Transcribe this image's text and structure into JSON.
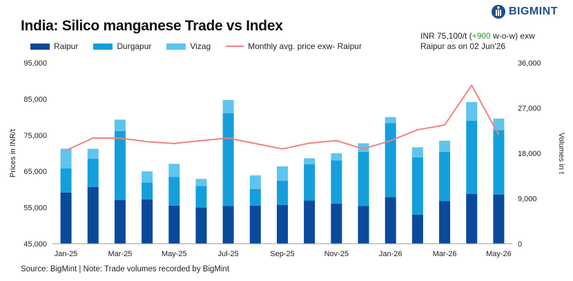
{
  "header": {
    "title": "India: Silico manganese Trade vs Index",
    "brand": "BIGMINT"
  },
  "note": {
    "line1_prefix": "INR 75,100/t (",
    "change": "+900",
    "line1_suffix": " w-o-w) exw",
    "line2": "Raipur as on 02 Jun'26"
  },
  "footer": {
    "source": "Source: BigMint | Note: Trade volumes recorded by BigMint"
  },
  "colors": {
    "raipur": "#0a4a9b",
    "durgapur": "#149fdc",
    "vizag": "#5fc4ee",
    "price_line": "#f08080"
  },
  "chart_data": {
    "type": "bar",
    "stacked": true,
    "categories": [
      "Jan-25",
      "Feb-25",
      "Mar-25",
      "Apr-25",
      "May-25",
      "Jun-25",
      "Jul-25",
      "Aug-25",
      "Sep-25",
      "Oct-25",
      "Nov-25",
      "Dec-25",
      "Jan-26",
      "Feb-26",
      "Mar-26",
      "Apr-26",
      "May-26"
    ],
    "x_tick_labels": [
      "Jan-25",
      "",
      "Mar-25",
      "",
      "May-25",
      "",
      "Jul-25",
      "",
      "Sep-25",
      "",
      "Nov-25",
      "",
      "Jan-26",
      "",
      "Mar-26",
      "",
      "May-26"
    ],
    "series": [
      {
        "name": "Raipur",
        "axis": "right",
        "values": [
          10200,
          11300,
          8700,
          8800,
          7600,
          7200,
          7500,
          7600,
          7700,
          8600,
          8000,
          7500,
          9300,
          5800,
          8500,
          9900,
          9800
        ]
      },
      {
        "name": "Durgapur",
        "axis": "right",
        "values": [
          4800,
          5600,
          13700,
          3400,
          5700,
          4300,
          18500,
          3300,
          4800,
          7200,
          8600,
          10800,
          14700,
          11400,
          9800,
          14600,
          12800
        ]
      },
      {
        "name": "Vizag",
        "axis": "right",
        "values": [
          3900,
          2000,
          2300,
          2200,
          2600,
          1400,
          2600,
          2700,
          2900,
          1200,
          1400,
          1700,
          1200,
          2000,
          2200,
          3700,
          2300
        ]
      }
    ],
    "line_series": {
      "name": "Monthly avg. price exw- Raipur",
      "axis": "left",
      "values": [
        70800,
        74200,
        74200,
        73200,
        72700,
        73500,
        74200,
        71200,
        72800,
        73500,
        71200,
        73500,
        76500,
        77800,
        88800,
        75100
      ]
    },
    "line_x_indices": [
      0,
      1,
      2,
      3,
      4,
      5,
      6,
      8,
      9,
      10,
      11,
      12,
      13,
      14,
      15,
      16
    ],
    "ylabel": "Prices in INR/t",
    "y2label": "Volumes in t",
    "ylim": [
      45000,
      95000
    ],
    "y_ticks": [
      "45,000",
      "55,000",
      "65,000",
      "75,000",
      "85,000",
      "95,000"
    ],
    "y2lim": [
      0,
      36000
    ],
    "y2_ticks": [
      "0",
      "9,000",
      "18,000",
      "27,000",
      "36,000"
    ],
    "grid": false,
    "legend": "top-left"
  }
}
